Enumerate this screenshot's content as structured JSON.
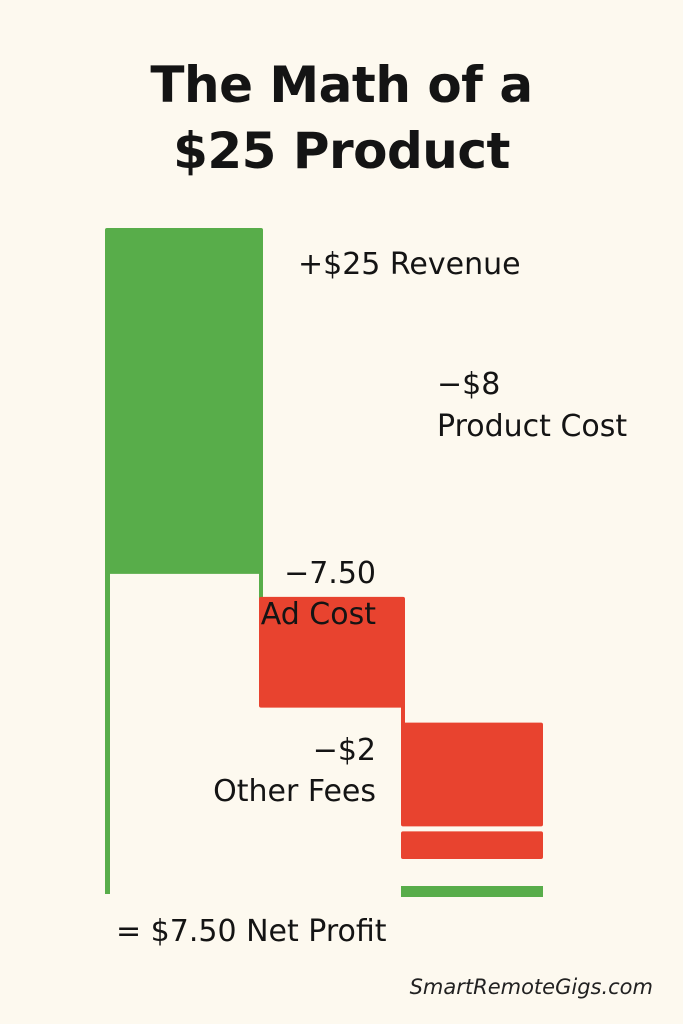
{
  "page": {
    "title_line1": "The Math of a",
    "title_line2": "$25 Product",
    "watermark": "SmartRemoteGigs.com"
  },
  "colors": {
    "background": "#fdf9ef",
    "positive": "#58ad4a",
    "negative": "#e8432f",
    "text": "#141414"
  },
  "chart_data": {
    "type": "waterfall",
    "title": "The Math of a $25 Product",
    "unit": "USD",
    "steps": [
      {
        "label_value": "+$25",
        "label_name": "Revenue",
        "value": 25,
        "kind": "increase"
      },
      {
        "label_value": "−$8",
        "label_name": "Product Cost",
        "value": -8,
        "kind": "decrease"
      },
      {
        "label_value": "−7.50",
        "label_name": "Ad Cost",
        "value": -7.5,
        "kind": "decrease"
      },
      {
        "label_value": "−$2",
        "label_name": "Other Fees",
        "value": -2,
        "kind": "decrease"
      }
    ],
    "total": {
      "label": "= $7.50 Net Profit",
      "value": 7.5,
      "kind": "total"
    },
    "grid": false,
    "legend": false
  }
}
